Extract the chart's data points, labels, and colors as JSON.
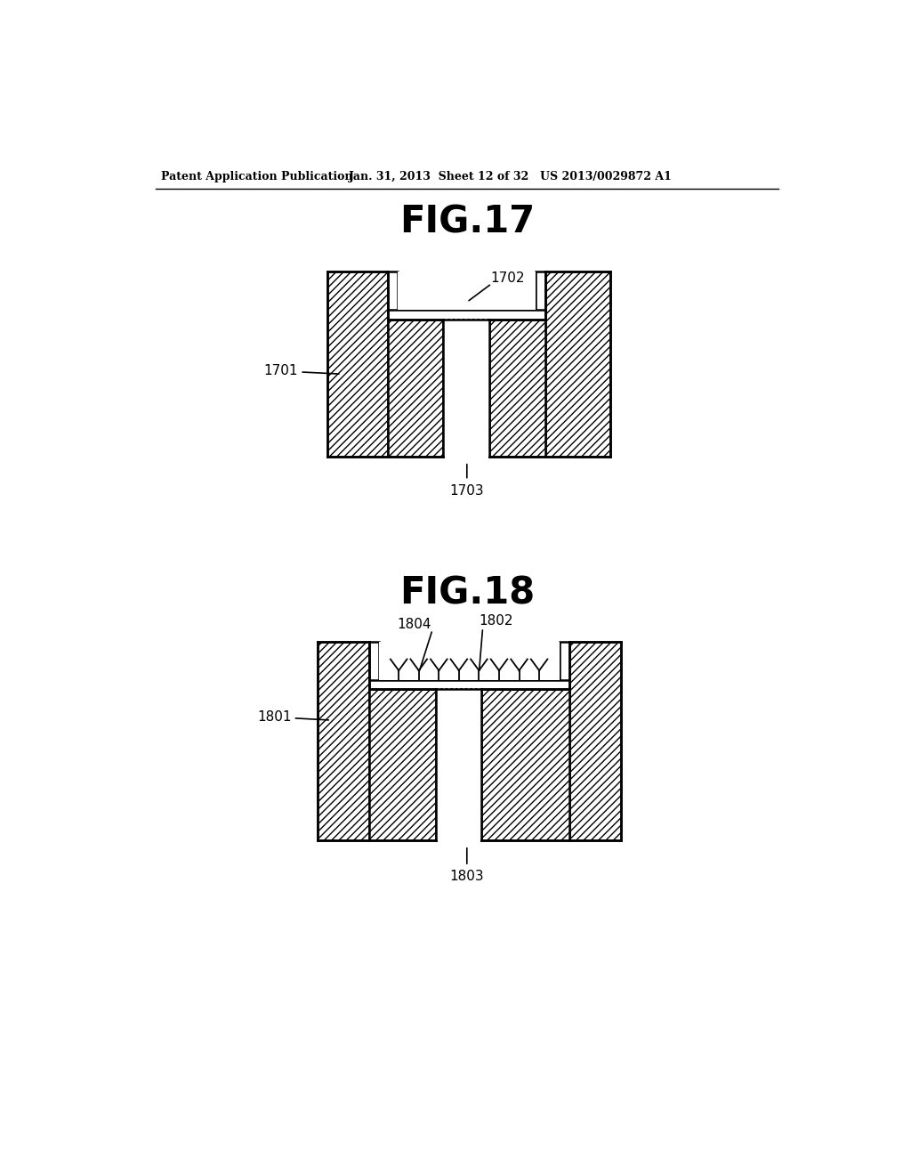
{
  "title1": "FIG.17",
  "title2": "FIG.18",
  "header_left": "Patent Application Publication",
  "header_mid": "Jan. 31, 2013  Sheet 12 of 32",
  "header_right": "US 2013/0029872 A1",
  "label_1701": "1701",
  "label_1702": "1702",
  "label_1703": "1703",
  "label_1801": "1801",
  "label_1802": "1802",
  "label_1803": "1803",
  "label_1804": "1804",
  "bg_color": "#ffffff"
}
